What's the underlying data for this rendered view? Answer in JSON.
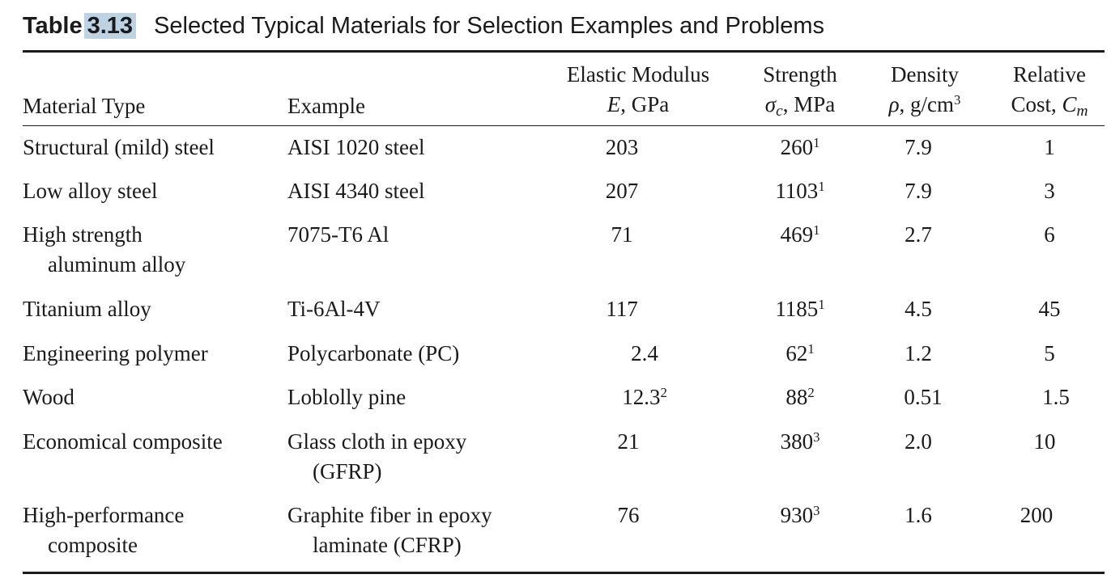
{
  "table": {
    "label": "Table",
    "number": "3.13",
    "caption": "Selected Typical Materials for Selection Examples and Problems",
    "headers": {
      "material_type": "Material Type",
      "example": "Example",
      "modulus_line1": "Elastic Modulus",
      "modulus_sym": "E",
      "modulus_unit": ", GPa",
      "strength_line1": "Strength",
      "strength_sym": "σ",
      "strength_sub": "c",
      "strength_unit": ", MPa",
      "density_line1": "Density",
      "density_sym": "ρ",
      "density_unit": ", g/cm",
      "density_exp": "3",
      "cost_line1": "Relative",
      "cost_prefix": "Cost, ",
      "cost_sym": "C",
      "cost_sub": "m"
    },
    "rows": [
      {
        "type": [
          "Structural (mild) steel"
        ],
        "example": [
          "AISI 1020 steel"
        ],
        "modulus": "203",
        "modulus_note": "",
        "strength": "260",
        "strength_note": "1",
        "density": "7.9",
        "cost": "1"
      },
      {
        "type": [
          "Low alloy steel"
        ],
        "example": [
          "AISI 4340 steel"
        ],
        "modulus": "207",
        "modulus_note": "",
        "strength": "1103",
        "strength_note": "1",
        "density": "7.9",
        "cost": "3"
      },
      {
        "type": [
          "High strength",
          "aluminum alloy"
        ],
        "example": [
          "7075-T6 Al"
        ],
        "modulus": "71",
        "modulus_note": "",
        "strength": "469",
        "strength_note": "1",
        "density": "2.7",
        "cost": "6"
      },
      {
        "type": [
          "Titanium alloy"
        ],
        "example": [
          "Ti-6Al-4V"
        ],
        "modulus": "117",
        "modulus_note": "",
        "strength": "1185",
        "strength_note": "1",
        "density": "4.5",
        "cost": "45"
      },
      {
        "type": [
          "Engineering polymer"
        ],
        "example": [
          "Polycarbonate (PC)"
        ],
        "modulus": "2.4",
        "modulus_note": "",
        "strength": "62",
        "strength_note": "1",
        "density": "1.2",
        "cost": "5"
      },
      {
        "type": [
          "Wood"
        ],
        "example": [
          "Loblolly pine"
        ],
        "modulus": "12.3",
        "modulus_note": "2",
        "strength": "88",
        "strength_note": "2",
        "density": "0.51",
        "cost": "1.5"
      },
      {
        "type": [
          "Economical composite"
        ],
        "example": [
          "Glass cloth in epoxy",
          "(GFRP)"
        ],
        "modulus": "21",
        "modulus_note": "",
        "strength": "380",
        "strength_note": "3",
        "density": "2.0",
        "cost": "10"
      },
      {
        "type": [
          "High-performance",
          "composite"
        ],
        "example": [
          "Graphite fiber in epoxy",
          "laminate (CFRP)"
        ],
        "modulus": "76",
        "modulus_note": "",
        "strength": "930",
        "strength_note": "3",
        "density": "1.6",
        "cost": "200"
      }
    ]
  }
}
